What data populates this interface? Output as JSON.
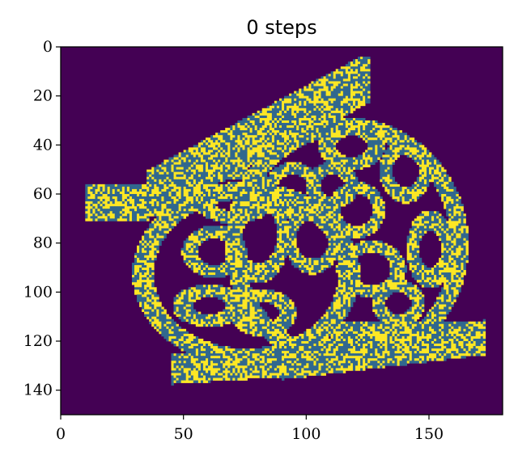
{
  "chart_data": {
    "type": "heatmap",
    "title": "0 steps",
    "xlabel": "",
    "ylabel": "",
    "xlim": [
      0,
      180
    ],
    "ylim": [
      150,
      0
    ],
    "x_ticks": [
      0,
      50,
      100,
      150
    ],
    "y_ticks": [
      0,
      20,
      40,
      60,
      80,
      100,
      120,
      140
    ],
    "grid": false,
    "colormap": [
      "#440154",
      "#31688e",
      "#fde725"
    ],
    "background_value": 0,
    "network_regions": {
      "description": "Image cells: 0 = empty (purple), 1 = network (teal), 2 = active (yellow)",
      "bands": [
        {
          "from": [
            10,
            63
          ],
          "to": [
            35,
            63
          ],
          "width": 14
        },
        {
          "from": [
            35,
            60
          ],
          "to": [
            125,
            12
          ],
          "width": 16
        },
        {
          "from": [
            45,
            131
          ],
          "to": [
            90,
            128
          ],
          "width": 12
        },
        {
          "from": [
            90,
            128
          ],
          "to": [
            172,
            118
          ],
          "width": 14
        },
        {
          "from": [
            110,
            118
          ],
          "to": [
            172,
            118
          ],
          "width": 12
        }
      ],
      "rings": [
        {
          "cx": 116,
          "cy": 80,
          "rx": 46,
          "ry": 48,
          "width": 7
        },
        {
          "cx": 75,
          "cy": 92,
          "rx": 42,
          "ry": 34,
          "width": 7
        },
        {
          "cx": 80,
          "cy": 76,
          "rx": 10,
          "ry": 16,
          "width": 5
        },
        {
          "cx": 70,
          "cy": 60,
          "rx": 14,
          "ry": 9,
          "width": 5
        },
        {
          "cx": 62,
          "cy": 83,
          "rx": 10,
          "ry": 8,
          "width": 5
        },
        {
          "cx": 110,
          "cy": 56,
          "rx": 8,
          "ry": 7,
          "width": 5
        },
        {
          "cx": 94,
          "cy": 58,
          "rx": 9,
          "ry": 9,
          "width": 5
        },
        {
          "cx": 120,
          "cy": 66,
          "rx": 9,
          "ry": 9,
          "width": 5
        },
        {
          "cx": 102,
          "cy": 78,
          "rx": 9,
          "ry": 11,
          "width": 5
        },
        {
          "cx": 126,
          "cy": 90,
          "rx": 11,
          "ry": 9,
          "width": 5
        },
        {
          "cx": 118,
          "cy": 40,
          "rx": 10,
          "ry": 7,
          "width": 5
        },
        {
          "cx": 140,
          "cy": 50,
          "rx": 8,
          "ry": 10,
          "width": 5
        },
        {
          "cx": 150,
          "cy": 82,
          "rx": 7,
          "ry": 12,
          "width": 5
        },
        {
          "cx": 82,
          "cy": 108,
          "rx": 10,
          "ry": 7,
          "width": 5
        },
        {
          "cx": 60,
          "cy": 105,
          "rx": 11,
          "ry": 6,
          "width": 5
        },
        {
          "cx": 137,
          "cy": 104,
          "rx": 8,
          "ry": 7,
          "width": 5
        }
      ],
      "yellow_fraction": 0.45
    }
  }
}
